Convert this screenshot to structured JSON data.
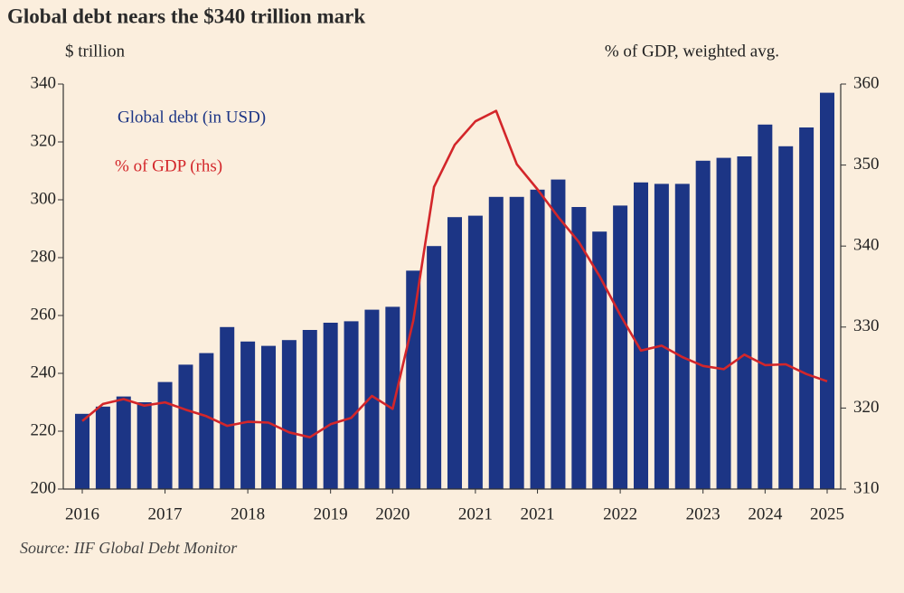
{
  "chart_data": {
    "type": "bar-line",
    "title": "Global debt nears the $340 trillion mark",
    "ylabel": "$ trillion",
    "y2label": "% of GDP, weighted avg.",
    "source": "Source: IIF Global Debt Monitor",
    "categories": [
      "2016",
      null,
      null,
      null,
      "2017",
      null,
      null,
      null,
      "2018",
      null,
      null,
      null,
      "2019",
      null,
      null,
      "2020",
      null,
      null,
      null,
      "2021",
      null,
      null,
      "2021",
      null,
      null,
      null,
      "2022",
      null,
      null,
      null,
      "2023",
      null,
      null,
      "2024",
      null,
      null,
      "2025"
    ],
    "series": [
      {
        "name": "Global debt (in USD)",
        "color": "#1c3585",
        "type": "bar",
        "values": [
          226,
          228.5,
          232,
          230,
          237,
          243,
          247,
          256,
          251,
          249.5,
          251.5,
          255,
          257.5,
          258,
          262,
          263,
          275.5,
          284,
          294,
          294.5,
          301,
          301,
          303.5,
          307,
          297.5,
          289,
          298,
          306,
          305.5,
          305.5,
          313.5,
          314.5,
          315,
          326,
          318.5,
          325,
          337
        ]
      },
      {
        "name": "% of GDP (rhs)",
        "color": "#d3262a",
        "type": "line",
        "axis": "y2",
        "values": [
          318.4,
          320.5,
          321.1,
          320.3,
          320.7,
          319.8,
          319,
          317.8,
          318.3,
          318.2,
          317,
          316.4,
          318,
          318.8,
          321.5,
          319.9,
          330.8,
          347.3,
          352.5,
          355.4,
          356.7,
          350.1,
          347,
          343.6,
          340.5,
          336.3,
          331.5,
          327.1,
          327.7,
          326.3,
          325.2,
          324.8,
          326.6,
          325.3,
          325.4,
          324.2,
          323.3
        ]
      }
    ],
    "ylim": [
      200,
      340
    ],
    "yticks": [
      200,
      220,
      240,
      260,
      280,
      300,
      320,
      340
    ],
    "y2lim": [
      310,
      360
    ],
    "y2ticks": [
      310,
      320,
      330,
      340,
      350,
      360
    ],
    "grid": false
  }
}
